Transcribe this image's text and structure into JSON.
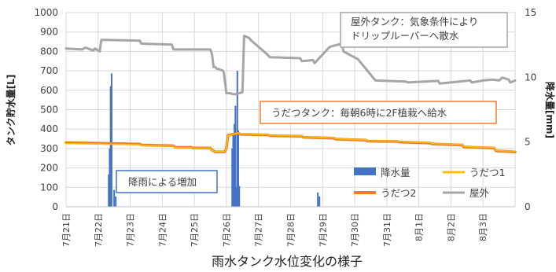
{
  "chart_data": {
    "type": "line",
    "title": "雨水タンク水位変化の様子",
    "ylabel": "タンク貯水量[L]",
    "y2label": "降水量[mm]",
    "ylim": [
      0,
      1000
    ],
    "yticks": [
      0,
      100,
      200,
      300,
      400,
      500,
      600,
      700,
      800,
      900,
      1000
    ],
    "y2lim": [
      0,
      15
    ],
    "y2ticks": [
      0,
      5,
      10,
      15
    ],
    "grid": true,
    "legend_position": "bottom-right inside plot",
    "xlim": [
      21,
      35
    ],
    "x_tick_days": [
      21,
      22,
      23,
      24,
      25,
      26,
      27,
      28,
      29,
      30,
      31,
      32,
      33,
      34
    ],
    "x_tick_labels": [
      "7月21日",
      "7月22日",
      "7月23日",
      "7月24日",
      "7月25日",
      "7月26日",
      "7月27日",
      "7月28日",
      "7月29日",
      "7月30日",
      "7月31日",
      "8月1日",
      "8月2日",
      "8月3日"
    ],
    "colors": {
      "outdoor": "#a6a6a6",
      "udatsu1": "#ffc000",
      "udatsu2": "#ed7d31",
      "rain": "#4472c4",
      "grid": "#d9d9d9",
      "ann_orange": "#ed7d31",
      "ann_blue": "#4472c4",
      "ann_gray": "#a6a6a6"
    },
    "legend": [
      "降水量",
      "うだつ1",
      "うだつ2",
      "屋外"
    ],
    "series": [
      {
        "name": "屋外",
        "axis": "left",
        "x": [
          21.0,
          21.5,
          21.6,
          21.85,
          21.9,
          22.05,
          22.1,
          23.3,
          23.35,
          24.3,
          24.35,
          25.5,
          25.55,
          25.6,
          25.65,
          25.7,
          25.75,
          25.9,
          25.92,
          26.0,
          26.1,
          26.2,
          26.3,
          26.4,
          26.5,
          26.55,
          26.7,
          26.75,
          27.3,
          27.35,
          28.3,
          28.35,
          28.7,
          28.75,
          29.2,
          29.25,
          29.6,
          29.65,
          30.1,
          30.15,
          30.6,
          30.65,
          31.6,
          31.65,
          32.6,
          32.65,
          33.6,
          33.65,
          34.0,
          34.3,
          34.5,
          34.6,
          34.8,
          34.85,
          35.0
        ],
        "values": [
          815,
          810,
          820,
          805,
          815,
          800,
          860,
          855,
          840,
          835,
          810,
          810,
          785,
          720,
          720,
          710,
          710,
          700,
          690,
          585,
          585,
          580,
          580,
          585,
          590,
          880,
          870,
          860,
          780,
          770,
          765,
          750,
          755,
          740,
          820,
          825,
          840,
          800,
          760,
          750,
          660,
          650,
          645,
          640,
          648,
          635,
          650,
          640,
          650,
          655,
          650,
          665,
          655,
          640,
          650
        ]
      },
      {
        "name": "うだつ1",
        "axis": "left",
        "x": [
          21.0,
          23.3,
          23.35,
          24.35,
          24.4,
          24.9,
          24.95,
          25.5,
          25.55,
          25.6,
          25.65,
          25.95,
          26.0,
          26.05,
          26.35,
          26.4,
          26.45,
          27.3,
          27.35,
          28.35,
          28.4,
          29.35,
          29.4,
          30.35,
          30.4,
          31.35,
          31.4,
          32.35,
          32.4,
          33.35,
          33.4,
          34.35,
          34.4,
          35.0
        ],
        "values": [
          325,
          320,
          315,
          312,
          305,
          305,
          302,
          302,
          290,
          287,
          285,
          285,
          300,
          365,
          380,
          378,
          375,
          372,
          368,
          365,
          360,
          355,
          350,
          345,
          340,
          338,
          335,
          330,
          326,
          320,
          310,
          305,
          290,
          285
        ]
      },
      {
        "name": "うだつ2",
        "axis": "left",
        "x": [
          21.0,
          23.3,
          23.35,
          24.35,
          24.4,
          24.9,
          24.95,
          25.5,
          25.55,
          25.6,
          25.65,
          25.95,
          26.0,
          26.05,
          26.35,
          26.4,
          26.45,
          27.3,
          27.35,
          28.35,
          28.4,
          29.35,
          29.4,
          30.35,
          30.4,
          31.35,
          31.4,
          32.35,
          32.4,
          33.35,
          33.4,
          34.35,
          34.4,
          35.0
        ],
        "values": [
          330,
          323,
          318,
          314,
          307,
          306,
          303,
          303,
          291,
          288,
          283,
          283,
          302,
          368,
          378,
          376,
          373,
          370,
          366,
          363,
          358,
          353,
          348,
          343,
          338,
          336,
          333,
          328,
          324,
          318,
          308,
          302,
          288,
          282
        ]
      },
      {
        "name": "降水量",
        "axis": "right",
        "type": "bar",
        "x": [
          22.33,
          22.36,
          22.39,
          22.42,
          22.5,
          22.55,
          26.18,
          26.21,
          26.25,
          26.28,
          26.31,
          26.34,
          26.37,
          26.4,
          28.85,
          28.9
        ],
        "values": [
          2.5,
          4.5,
          9.3,
          10.3,
          1.3,
          0.8,
          4.5,
          5.5,
          6.4,
          7.8,
          1.5,
          10.5,
          5.9,
          1.6,
          1.1,
          0.8
        ]
      }
    ],
    "annotations": [
      {
        "text": "屋外タンク：気象条件により\nドリップルーバーへ散水",
        "border": "gray"
      },
      {
        "text": "うだつタンク：毎朝6時に2F植栽へ給水",
        "border": "orange"
      },
      {
        "text": "降雨による増加",
        "border": "blue"
      }
    ]
  }
}
